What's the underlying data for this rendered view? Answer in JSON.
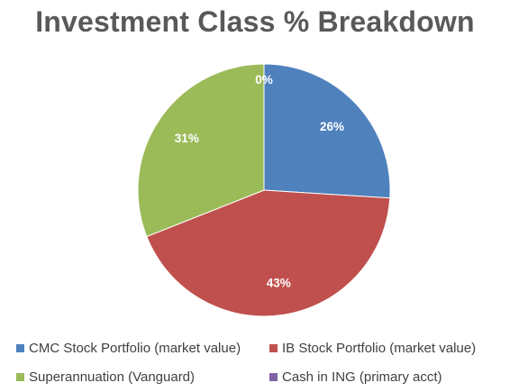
{
  "chart_data": {
    "type": "pie",
    "title": "Investment Class % Breakdown",
    "categories": [
      "CMC Stock Portfolio (market value)",
      "IB Stock Portfolio (market value)",
      "Superannuation (Vanguard)",
      "Cash in ING (primary acct)"
    ],
    "values": [
      26,
      43,
      31,
      0
    ],
    "data_labels": [
      "26%",
      "43%",
      "31%",
      "0%"
    ],
    "colors": [
      "#4F81BD",
      "#C0504D",
      "#9BBB59",
      "#8064A2"
    ],
    "legend_position": "bottom"
  }
}
